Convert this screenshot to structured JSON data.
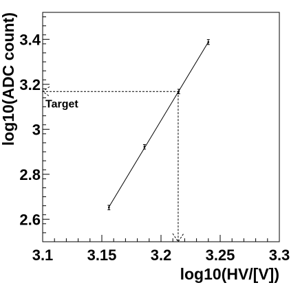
{
  "chart_data": {
    "type": "scatter",
    "xlabel": "log10(HV/[V])",
    "ylabel": "log10(ADC count)",
    "xlim": [
      3.1,
      3.3
    ],
    "ylim": [
      2.5,
      3.52
    ],
    "x_ticks": [
      "3.1",
      "3.15",
      "3.2",
      "3.25",
      "3.3"
    ],
    "y_ticks": [
      "2.6",
      "2.8",
      "3",
      "3.2",
      "3.4"
    ],
    "grid": false,
    "series": [
      {
        "points": [
          {
            "x": 3.156,
            "y": 2.652,
            "err": 0.01
          },
          {
            "x": 3.186,
            "y": 2.922,
            "err": 0.01
          },
          {
            "x": 3.215,
            "y": 3.168,
            "err": 0.01
          },
          {
            "x": 3.24,
            "y": 3.388,
            "err": 0.011
          }
        ],
        "fit": {
          "x_start": 3.156,
          "x_end": 3.24
        },
        "color": "#000000"
      }
    ],
    "annotations": [
      {
        "text": "Target",
        "target_y": 3.168,
        "target_x": 3.2145
      }
    ]
  }
}
